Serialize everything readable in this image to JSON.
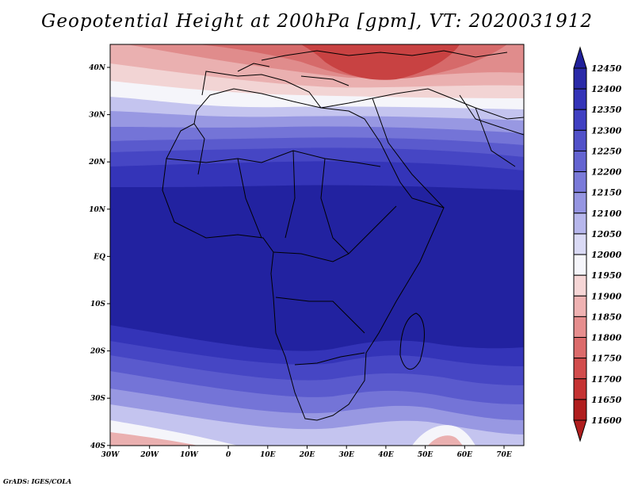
{
  "title": "Geopotential Height at 200hPa [gpm], VT: 2020031912",
  "footer": "GrADS: IGES/COLA",
  "map": {
    "lat_labels": [
      "40N",
      "30N",
      "20N",
      "10N",
      "EQ",
      "10S",
      "20S",
      "30S",
      "40S"
    ],
    "lon_labels": [
      "30W",
      "20W",
      "10W",
      "0",
      "10E",
      "20E",
      "30E",
      "40E",
      "50E",
      "60E",
      "70E"
    ],
    "lon_range": [
      -30,
      75
    ],
    "lat_range": [
      -40,
      44
    ]
  },
  "colorbar": {
    "levels": [
      "12450",
      "12400",
      "12350",
      "12300",
      "12250",
      "12200",
      "12150",
      "12100",
      "12050",
      "12000",
      "11950",
      "11900",
      "11850",
      "11800",
      "11750",
      "11700",
      "11650",
      "11600"
    ],
    "colors": [
      "#20209a",
      "#2a2aa8",
      "#3434b8",
      "#4040c2",
      "#5151c9",
      "#6464d1",
      "#7a7ad9",
      "#9696e2",
      "#b7b7ec",
      "#dadaf5",
      "#f6f6fb",
      "#f6d6d6",
      "#efb2b2",
      "#e68e8e",
      "#dc6b6b",
      "#d24d4d",
      "#c53333",
      "#b01e1e"
    ]
  },
  "colors": {
    "deep_blue": "#2222a0",
    "white": "#f5f5fa",
    "deep_red": "#c02828"
  }
}
